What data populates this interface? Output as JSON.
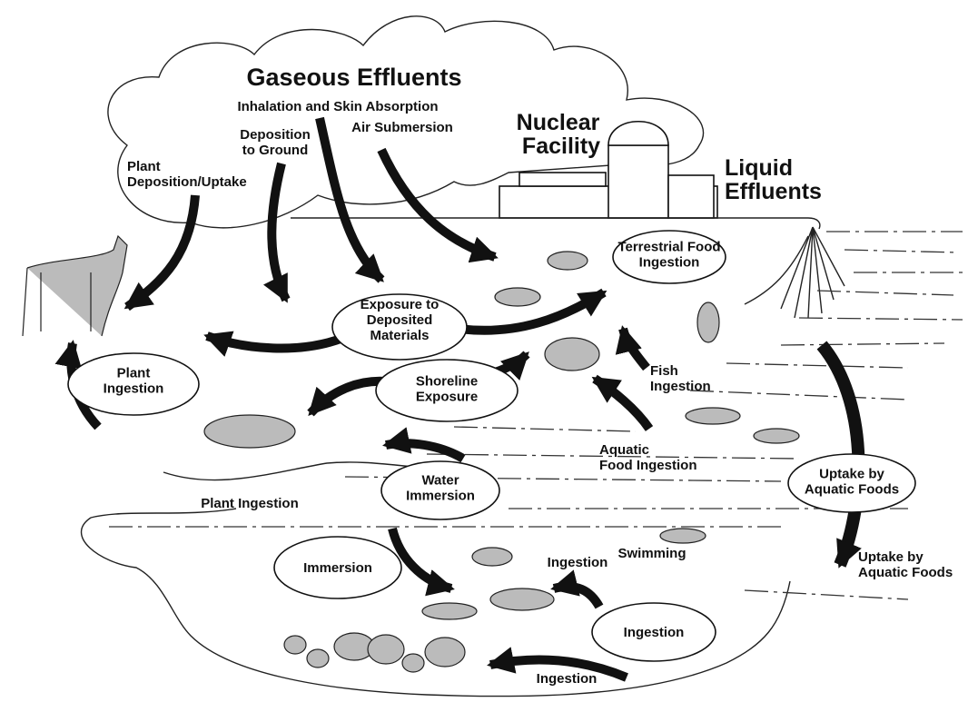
{
  "title": "Gaseous Effluents",
  "facility": {
    "lines": [
      "Nuclear",
      "Facility"
    ]
  },
  "liquid": {
    "lines": [
      "Liquid",
      "Effluents"
    ]
  },
  "labels": [
    {
      "lines": [
        "Inhalation and Skin Absorption"
      ]
    },
    {
      "lines": [
        "Deposition",
        "to Ground"
      ]
    },
    {
      "lines": [
        "Air Submersion"
      ]
    },
    {
      "lines": [
        "Plant",
        "Deposition/Uptake"
      ]
    },
    {
      "lines": [
        "Fish",
        "Ingestion"
      ]
    },
    {
      "lines": [
        "Aquatic",
        "Food Ingestion"
      ]
    },
    {
      "lines": [
        "Plant Ingestion"
      ]
    },
    {
      "lines": [
        "Swimming"
      ]
    },
    {
      "lines": [
        "Uptake by",
        "Aquatic Foods"
      ]
    },
    {
      "lines": [
        "Ingestion"
      ]
    },
    {
      "lines": [
        "Ingestion"
      ]
    }
  ],
  "nodes": [
    {
      "lines": [
        "Terrestrial Food",
        "Ingestion"
      ]
    },
    {
      "lines": [
        "Exposure to",
        "Deposited",
        "Materials"
      ]
    },
    {
      "lines": [
        "Plant",
        "Ingestion"
      ]
    },
    {
      "lines": [
        "Shoreline",
        "Exposure"
      ]
    },
    {
      "lines": [
        "Uptake by",
        "Aquatic Foods"
      ]
    },
    {
      "lines": [
        "Water",
        "Immersion"
      ]
    },
    {
      "lines": [
        "Immersion"
      ]
    },
    {
      "lines": [
        "Ingestion"
      ]
    }
  ]
}
